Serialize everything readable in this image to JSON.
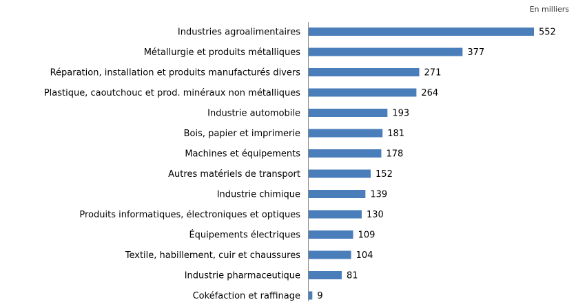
{
  "chart_data": {
    "type": "bar",
    "subtitle": "En milliers",
    "categories": [
      "Industries agroalimentaires",
      "Métallurgie et produits métalliques",
      "Réparation, installation et produits manufacturés divers",
      "Plastique, caoutchouc et prod. minéraux non métalliques",
      "Industrie automobile",
      "Bois, papier et imprimerie",
      "Machines et équipements",
      "Autres matériels de transport",
      "Industrie chimique",
      "Produits informatiques, électroniques et optiques",
      "Équipements électriques",
      "Textile, habillement, cuir et chaussures",
      "Industrie pharmaceutique",
      "Cokéfaction et raffinage"
    ],
    "values": [
      552,
      377,
      271,
      264,
      193,
      181,
      178,
      152,
      139,
      130,
      109,
      104,
      81,
      9
    ],
    "color": "#4a7ebb"
  }
}
